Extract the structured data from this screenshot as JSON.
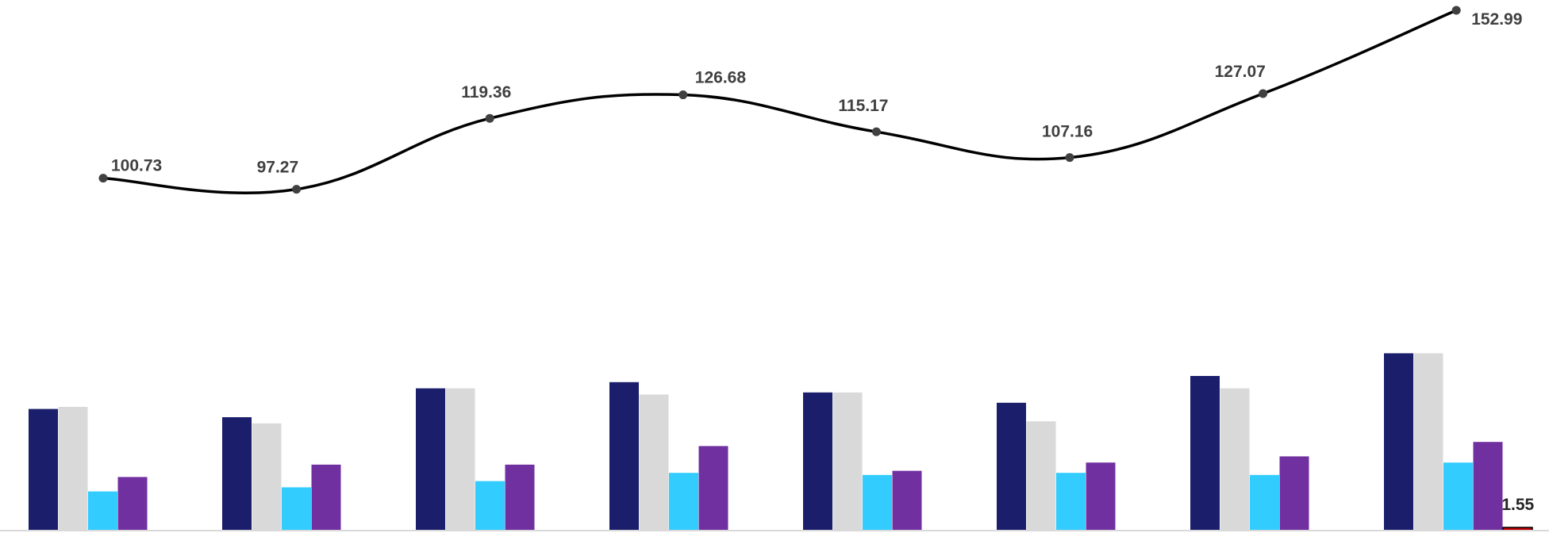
{
  "chart_data": {
    "type": "bar",
    "categories": [
      "",
      "",
      "",
      "",
      "",
      "",
      "",
      ""
    ],
    "line_series": {
      "values": [
        100.73,
        97.27,
        119.36,
        126.68,
        115.17,
        107.16,
        127.07,
        152.99
      ],
      "labels": [
        "100.73",
        "97.27",
        "119.36",
        "126.68",
        "115.17",
        "107.16",
        "127.07",
        "152.99"
      ],
      "color": "#000000",
      "marker_color": "#404040"
    },
    "series": [
      {
        "values": [
          59,
          55,
          69,
          72,
          67,
          62,
          75,
          86
        ],
        "color": "#1b1f6b"
      },
      {
        "values": [
          60,
          52,
          69,
          66,
          67,
          53,
          69,
          86
        ],
        "color": "#d9d9d9"
      },
      {
        "values": [
          19,
          21,
          24,
          28,
          27,
          28,
          27,
          33
        ],
        "color": "#33ccff"
      },
      {
        "values": [
          26,
          32,
          32,
          41,
          29,
          33,
          36,
          43
        ],
        "color": "#7030a0"
      },
      {
        "values": [
          0,
          0,
          0,
          0,
          0,
          0,
          0,
          1.55
        ],
        "color": "#c00000",
        "labels": [
          "",
          "",
          "",
          "",
          "",
          "",
          "",
          "1.55"
        ]
      }
    ],
    "ylim": [
      0,
      100
    ],
    "grid": false,
    "legend": "none"
  }
}
